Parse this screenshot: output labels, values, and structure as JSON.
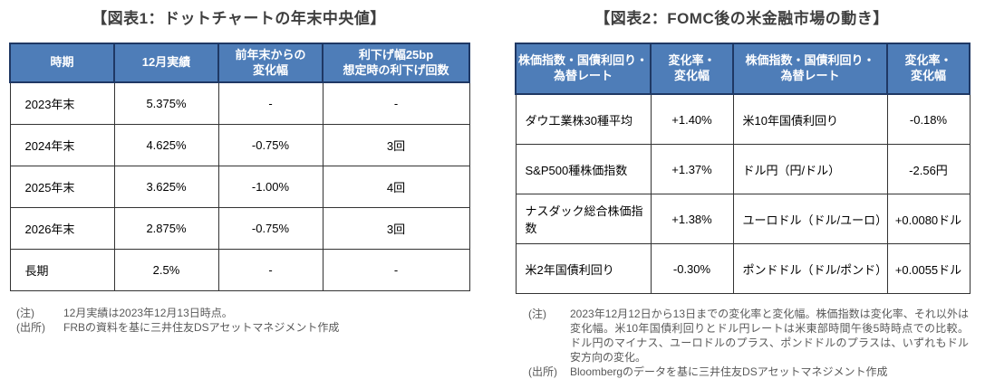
{
  "colors": {
    "header_bg": "#4e7db8",
    "header_border": "#1f3864",
    "header_text": "#ffffff",
    "cell_border": "#333333",
    "body_text": "#000000",
    "title_text": "#3f3f3f",
    "note_text": "#595959"
  },
  "figure1": {
    "title": "【図表1：ドットチャートの年末中央値】",
    "table": {
      "headers": [
        "時期",
        "12月実績",
        "前年末からの\n変化幅",
        "利下げ幅25bp\n想定時の利下げ回数"
      ],
      "rows": [
        [
          "2023年末",
          "5.375%",
          "-",
          "-"
        ],
        [
          "2024年末",
          "4.625%",
          "-0.75%",
          "3回"
        ],
        [
          "2025年末",
          "3.625%",
          "-1.00%",
          "4回"
        ],
        [
          "2026年末",
          "2.875%",
          "-0.75%",
          "3回"
        ],
        [
          "長期",
          "2.5%",
          "-",
          "-"
        ]
      ]
    },
    "notes": [
      {
        "label": "(注)",
        "text": "12月実績は2023年12月13日時点。"
      },
      {
        "label": "(出所)",
        "text": "FRBの資料を基に三井住友DSアセットマネジメント作成"
      }
    ]
  },
  "figure2": {
    "title": "【図表2：FOMC後の米金融市場の動き】",
    "table": {
      "headers": [
        "株価指数・国債利回り・\n為替レート",
        "変化率・\n変化幅",
        "株価指数・国債利回り・\n為替レート",
        "変化率・\n変化幅"
      ],
      "rows": [
        [
          "ダウ工業株30種平均",
          "+1.40%",
          "米10年国債利回り",
          "-0.18%"
        ],
        [
          "S&P500種株価指数",
          "+1.37%",
          "ドル円（円/ドル）",
          "-2.56円"
        ],
        [
          "ナスダック総合株価指数",
          "+1.38%",
          "ユーロドル（ドル/ユーロ）",
          "+0.0080ドル"
        ],
        [
          "米2年国債利回り",
          "-0.30%",
          "ポンドドル（ドル/ポンド）",
          "+0.0055ドル"
        ]
      ]
    },
    "notes": [
      {
        "label": "(注)",
        "text": "2023年12月12日から13日までの変化率と変化幅。株価指数は変化率、それ以外は変化幅。米10年国債利回りとドル円レートは米東部時間午後5時時点での比較。ドル円のマイナス、ユーロドルのプラス、ポンドドルのプラスは、いずれもドル安方向の変化。"
      },
      {
        "label": "(出所)",
        "text": "Bloombergのデータを基に三井住友DSアセットマネジメント作成"
      }
    ]
  },
  "chart_data": [
    {
      "type": "table",
      "title": "図表1：ドットチャートの年末中央値",
      "columns": [
        "時期",
        "12月実績",
        "前年末からの変化幅",
        "利下げ幅25bp想定時の利下げ回数"
      ],
      "rows": [
        [
          "2023年末",
          "5.375%",
          "-",
          "-"
        ],
        [
          "2024年末",
          "4.625%",
          "-0.75%",
          "3回"
        ],
        [
          "2025年末",
          "3.625%",
          "-1.00%",
          "4回"
        ],
        [
          "2026年末",
          "2.875%",
          "-0.75%",
          "3回"
        ],
        [
          "長期",
          "2.5%",
          "-",
          "-"
        ]
      ]
    },
    {
      "type": "table",
      "title": "図表2：FOMC後の米金融市場の動き",
      "columns": [
        "株価指数・国債利回り・為替レート",
        "変化率・変化幅",
        "株価指数・国債利回り・為替レート",
        "変化率・変化幅"
      ],
      "rows": [
        [
          "ダウ工業株30種平均",
          "+1.40%",
          "米10年国債利回り",
          "-0.18%"
        ],
        [
          "S&P500種株価指数",
          "+1.37%",
          "ドル円（円/ドル）",
          "-2.56円"
        ],
        [
          "ナスダック総合株価指数",
          "+1.38%",
          "ユーロドル（ドル/ユーロ）",
          "+0.0080ドル"
        ],
        [
          "米2年国債利回り",
          "-0.30%",
          "ポンドドル（ドル/ポンド）",
          "+0.0055ドル"
        ]
      ]
    }
  ]
}
